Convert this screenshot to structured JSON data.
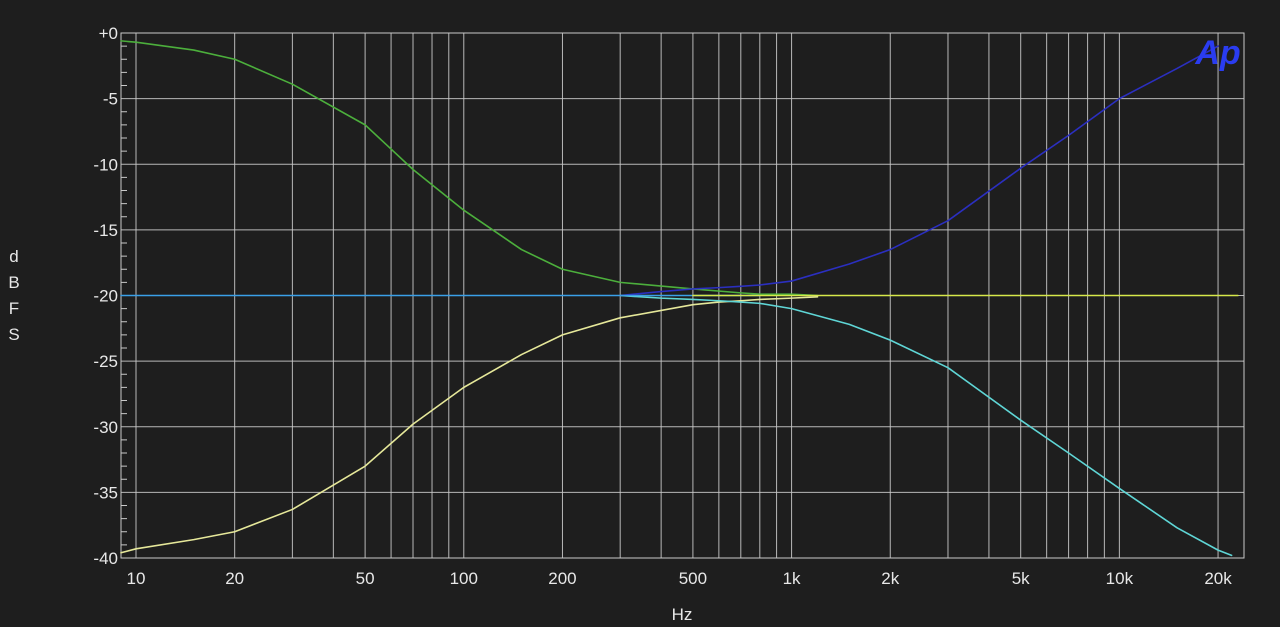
{
  "chart_data": {
    "type": "line",
    "xlabel": "Hz",
    "ylabel": "dBFS",
    "x_scale": "log",
    "xlim": [
      9,
      24000
    ],
    "ylim": [
      -40,
      0
    ],
    "x_ticks": [
      {
        "value": 10,
        "label": "10"
      },
      {
        "value": 20,
        "label": "20"
      },
      {
        "value": 50,
        "label": "50"
      },
      {
        "value": 100,
        "label": "100"
      },
      {
        "value": 200,
        "label": "200"
      },
      {
        "value": 500,
        "label": "500"
      },
      {
        "value": 1000,
        "label": "1k"
      },
      {
        "value": 2000,
        "label": "2k"
      },
      {
        "value": 5000,
        "label": "5k"
      },
      {
        "value": 10000,
        "label": "10k"
      },
      {
        "value": 20000,
        "label": "20k"
      }
    ],
    "y_ticks": [
      {
        "value": 0,
        "label": "+0"
      },
      {
        "value": -5,
        "label": "-5"
      },
      {
        "value": -10,
        "label": "-10"
      },
      {
        "value": -15,
        "label": "-15"
      },
      {
        "value": -20,
        "label": "-20"
      },
      {
        "value": -25,
        "label": "-25"
      },
      {
        "value": -30,
        "label": "-30"
      },
      {
        "value": -35,
        "label": "-35"
      },
      {
        "value": -40,
        "label": "-40"
      }
    ],
    "grid": true,
    "background": "#1e1e1e",
    "logo": {
      "text": "Ap",
      "color": "#2a3cf0",
      "position": "top-right"
    },
    "series": [
      {
        "color": "#4caf3c",
        "x": [
          9,
          10,
          15,
          20,
          30,
          50,
          70,
          100,
          150,
          200,
          300,
          500,
          700,
          800,
          1000,
          1200
        ],
        "y": [
          -0.6,
          -0.7,
          -1.3,
          -2.0,
          -3.9,
          -7.0,
          -10.4,
          -13.5,
          -16.5,
          -18.0,
          -19.0,
          -19.5,
          -19.8,
          -19.9,
          -19.9,
          -20.0
        ]
      },
      {
        "color": "#e6e89a",
        "x": [
          9,
          10,
          15,
          20,
          30,
          50,
          70,
          100,
          150,
          200,
          300,
          500,
          600,
          700,
          800,
          1000,
          1200
        ],
        "y": [
          -39.6,
          -39.3,
          -38.6,
          -38.0,
          -36.3,
          -33.0,
          -29.8,
          -27.0,
          -24.5,
          -23.0,
          -21.7,
          -20.7,
          -20.5,
          -20.4,
          -20.3,
          -20.2,
          -20.1
        ]
      },
      {
        "color": "#2b2fc0",
        "x": [
          300,
          400,
          500,
          600,
          700,
          800,
          1000,
          1500,
          2000,
          3000,
          5000,
          7000,
          10000,
          15000,
          20000
        ],
        "y": [
          -20.0,
          -19.7,
          -19.5,
          -19.4,
          -19.3,
          -19.2,
          -18.9,
          -17.6,
          -16.5,
          -14.3,
          -10.3,
          -7.8,
          -5.0,
          -2.7,
          -1.0
        ]
      },
      {
        "color": "#5fd6d6",
        "x": [
          300,
          400,
          500,
          600,
          700,
          800,
          1000,
          1500,
          2000,
          3000,
          5000,
          7000,
          10000,
          15000,
          20000,
          22000
        ],
        "y": [
          -20.0,
          -20.2,
          -20.3,
          -20.4,
          -20.5,
          -20.6,
          -21.0,
          -22.2,
          -23.4,
          -25.5,
          -29.5,
          -32.0,
          -34.7,
          -37.7,
          -39.4,
          -39.8
        ]
      },
      {
        "color": "#3aa0e8",
        "x": [
          9,
          20,
          50,
          100,
          200,
          300,
          500,
          700,
          800
        ],
        "y": [
          -20.0,
          -20.0,
          -20.0,
          -20.0,
          -20.0,
          -20.0,
          -20.0,
          -20.0,
          -20.0
        ]
      },
      {
        "color": "#d6e84a",
        "x": [
          500,
          800,
          1000,
          2000,
          5000,
          10000,
          20000,
          23000
        ],
        "y": [
          -20.0,
          -20.0,
          -20.0,
          -20.0,
          -20.0,
          -20.0,
          -20.0,
          -20.0
        ]
      }
    ]
  }
}
